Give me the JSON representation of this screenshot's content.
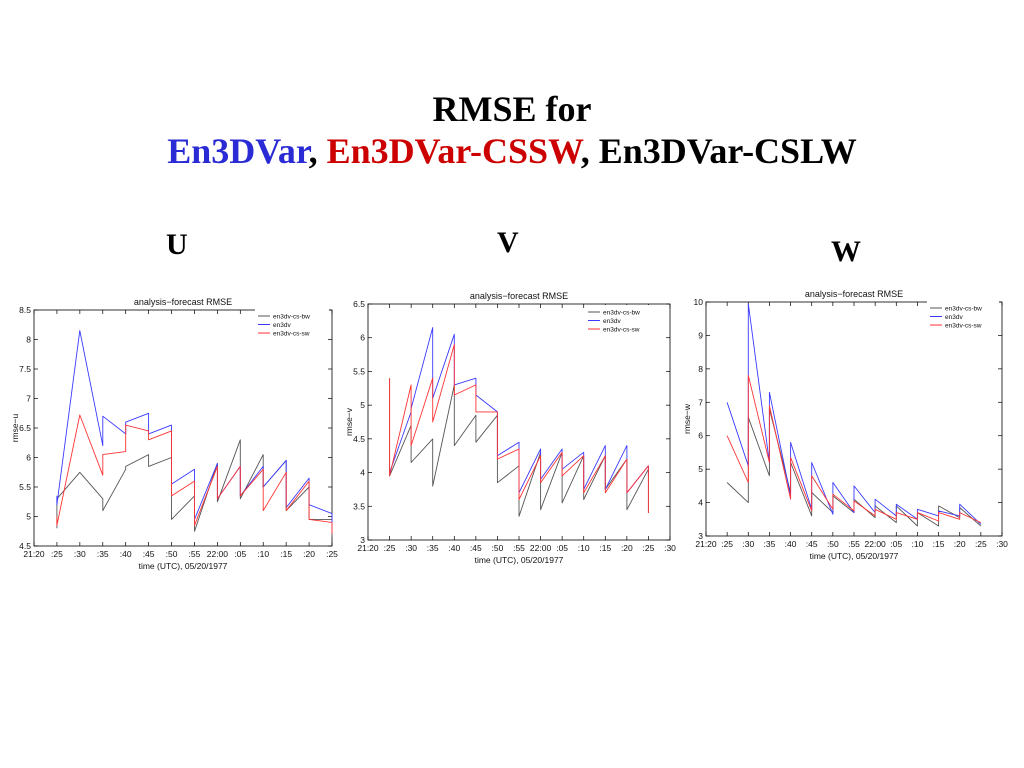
{
  "title": {
    "line1": "RMSE for",
    "part_a": "En3DVar",
    "sep1": ", ",
    "part_b": "En3DVar-CSSW",
    "sep2": ", ",
    "part_c": "En3DVar-CSLW"
  },
  "colors": {
    "en3dv-cs-bw": "#555555",
    "en3dv": "#3a3aff",
    "en3dv-cs-sw": "#ff3333"
  },
  "chart_data": [
    {
      "type": "line",
      "panel_label": "U",
      "title": "analysis−forecast RMSE",
      "xlabel": "time (UTC), 05/20/1977",
      "ylabel": "rmse−u",
      "x_ticks": [
        ":20",
        ":25",
        ":30",
        ":35",
        ":40",
        ":45",
        ":50",
        ":55",
        "22:00",
        ":05",
        ":10",
        ":15",
        ":20",
        ":25"
      ],
      "x_tick_first": "21:20",
      "x_range": [
        0,
        65
      ],
      "y_ticks": [
        "4.5",
        "5",
        "5.5",
        "6",
        "6.5",
        "7",
        "7.5",
        "8",
        "8.5"
      ],
      "ylim": [
        4.5,
        8.5
      ],
      "legend": [
        "en3dv-cs-bw",
        "en3dv",
        "en3dv-cs-sw"
      ],
      "series": [
        {
          "name": "en3dv-cs-bw",
          "points": [
            [
              5,
              4.8
            ],
            [
              5,
              5.3
            ],
            [
              10,
              5.75
            ],
            [
              15,
              5.3
            ],
            [
              15,
              5.1
            ],
            [
              20,
              5.8
            ],
            [
              20,
              5.85
            ],
            [
              25,
              6.05
            ],
            [
              25,
              5.85
            ],
            [
              30,
              6.0
            ],
            [
              30,
              4.95
            ],
            [
              35,
              5.35
            ],
            [
              35,
              4.75
            ],
            [
              40,
              5.9
            ],
            [
              40,
              5.25
            ],
            [
              45,
              6.3
            ],
            [
              45,
              5.3
            ],
            [
              50,
              6.05
            ],
            [
              50,
              5.5
            ],
            [
              55,
              5.95
            ],
            [
              55,
              5.1
            ],
            [
              60,
              5.5
            ],
            [
              60,
              4.95
            ],
            [
              65,
              4.95
            ],
            [
              65,
              4.65
            ]
          ]
        },
        {
          "name": "en3dv",
          "points": [
            [
              5,
              5.35
            ],
            [
              5,
              5.2
            ],
            [
              10,
              8.15
            ],
            [
              15,
              6.2
            ],
            [
              15,
              6.7
            ],
            [
              20,
              6.4
            ],
            [
              20,
              6.6
            ],
            [
              25,
              6.75
            ],
            [
              25,
              6.4
            ],
            [
              30,
              6.55
            ],
            [
              30,
              5.55
            ],
            [
              35,
              5.8
            ],
            [
              35,
              4.95
            ],
            [
              40,
              5.9
            ],
            [
              40,
              5.3
            ],
            [
              45,
              5.85
            ],
            [
              45,
              5.35
            ],
            [
              50,
              5.85
            ],
            [
              50,
              5.5
            ],
            [
              55,
              5.95
            ],
            [
              55,
              5.15
            ],
            [
              60,
              5.65
            ],
            [
              60,
              5.2
            ],
            [
              65,
              5.05
            ],
            [
              65,
              4.75
            ]
          ]
        },
        {
          "name": "en3dv-cs-sw",
          "points": [
            [
              5,
              5.0
            ],
            [
              5,
              4.85
            ],
            [
              10,
              6.72
            ],
            [
              15,
              5.7
            ],
            [
              15,
              6.05
            ],
            [
              20,
              6.1
            ],
            [
              20,
              6.55
            ],
            [
              25,
              6.45
            ],
            [
              25,
              6.3
            ],
            [
              30,
              6.45
            ],
            [
              30,
              5.35
            ],
            [
              35,
              5.6
            ],
            [
              35,
              4.85
            ],
            [
              40,
              5.85
            ],
            [
              40,
              5.3
            ],
            [
              45,
              5.85
            ],
            [
              45,
              5.35
            ],
            [
              50,
              5.8
            ],
            [
              50,
              5.1
            ],
            [
              55,
              5.75
            ],
            [
              55,
              5.1
            ],
            [
              60,
              5.6
            ],
            [
              60,
              4.95
            ],
            [
              65,
              4.9
            ],
            [
              65,
              4.7
            ]
          ]
        }
      ]
    },
    {
      "type": "line",
      "panel_label": "V",
      "title": "analysis−forecast RMSE",
      "xlabel": "time (UTC), 05/20/1977",
      "ylabel": "rmse−v",
      "x_ticks": [
        ":20",
        ":25",
        ":30",
        ":35",
        ":40",
        ":45",
        ":50",
        ":55",
        "22:00",
        ":05",
        ":10",
        ":15",
        ":20",
        ":25",
        ":30"
      ],
      "x_tick_first": "21:20",
      "x_range": [
        0,
        70
      ],
      "y_ticks": [
        "3",
        "3.5",
        "4",
        "4.5",
        "5",
        "5.5",
        "6",
        "6.5"
      ],
      "ylim": [
        3,
        6.5
      ],
      "legend": [
        "en3dv-cs-bw",
        "en3dv",
        "en3dv-cs-sw"
      ],
      "series": [
        {
          "name": "en3dv-cs-bw",
          "points": [
            [
              5,
              5.4
            ],
            [
              5,
              3.95
            ],
            [
              10,
              4.7
            ],
            [
              10,
              4.15
            ],
            [
              15,
              4.5
            ],
            [
              15,
              3.8
            ],
            [
              20,
              5.3
            ],
            [
              20,
              4.4
            ],
            [
              25,
              4.85
            ],
            [
              25,
              4.45
            ],
            [
              30,
              4.85
            ],
            [
              30,
              3.85
            ],
            [
              35,
              4.1
            ],
            [
              35,
              3.35
            ],
            [
              40,
              4.3
            ],
            [
              40,
              3.45
            ],
            [
              45,
              4.3
            ],
            [
              45,
              3.55
            ],
            [
              50,
              4.25
            ],
            [
              50,
              3.6
            ],
            [
              55,
              4.25
            ],
            [
              55,
              3.75
            ],
            [
              60,
              4.2
            ],
            [
              60,
              3.45
            ],
            [
              65,
              4.05
            ],
            [
              65,
              3.4
            ]
          ]
        },
        {
          "name": "en3dv",
          "points": [
            [
              5,
              4.0
            ],
            [
              10,
              4.9
            ],
            [
              10,
              4.95
            ],
            [
              15,
              6.15
            ],
            [
              15,
              5.1
            ],
            [
              20,
              6.05
            ],
            [
              20,
              5.3
            ],
            [
              25,
              5.4
            ],
            [
              25,
              5.15
            ],
            [
              30,
              4.9
            ],
            [
              30,
              4.25
            ],
            [
              35,
              4.45
            ],
            [
              35,
              3.7
            ],
            [
              40,
              4.35
            ],
            [
              40,
              3.9
            ],
            [
              45,
              4.35
            ],
            [
              45,
              4.05
            ],
            [
              50,
              4.3
            ],
            [
              50,
              3.75
            ],
            [
              55,
              4.4
            ],
            [
              55,
              3.75
            ],
            [
              60,
              4.4
            ],
            [
              60,
              3.7
            ],
            [
              65,
              4.1
            ],
            [
              65,
              3.95
            ]
          ]
        },
        {
          "name": "en3dv-cs-sw",
          "points": [
            [
              5,
              5.4
            ],
            [
              5,
              3.95
            ],
            [
              10,
              5.3
            ],
            [
              10,
              4.4
            ],
            [
              15,
              5.4
            ],
            [
              15,
              4.75
            ],
            [
              20,
              5.9
            ],
            [
              20,
              5.15
            ],
            [
              25,
              5.3
            ],
            [
              25,
              4.9
            ],
            [
              30,
              4.9
            ],
            [
              30,
              4.2
            ],
            [
              35,
              4.35
            ],
            [
              35,
              3.6
            ],
            [
              40,
              4.25
            ],
            [
              40,
              3.85
            ],
            [
              45,
              4.3
            ],
            [
              45,
              3.95
            ],
            [
              50,
              4.25
            ],
            [
              50,
              3.7
            ],
            [
              55,
              4.25
            ],
            [
              55,
              3.7
            ],
            [
              60,
              4.2
            ],
            [
              60,
              3.7
            ],
            [
              65,
              4.1
            ],
            [
              65,
              3.4
            ]
          ]
        }
      ]
    },
    {
      "type": "line",
      "panel_label": "W",
      "title": "analysis−forecast RMSE",
      "xlabel": "time (UTC), 05/20/1977",
      "ylabel": "rmse−w",
      "x_ticks": [
        ":20",
        ":25",
        ":30",
        ":35",
        ":40",
        ":45",
        ":50",
        ":55",
        "22:00",
        ":05",
        ":10",
        ":15",
        ":20",
        ":25",
        ":30"
      ],
      "x_tick_first": "21:20",
      "x_range": [
        0,
        70
      ],
      "y_ticks": [
        "3",
        "4",
        "5",
        "6",
        "7",
        "8",
        "9",
        "10"
      ],
      "ylim": [
        3,
        10
      ],
      "legend": [
        "en3dv-cs-bw",
        "en3dv",
        "en3dv-cs-sw"
      ],
      "series": [
        {
          "name": "en3dv-cs-bw",
          "points": [
            [
              5,
              4.6
            ],
            [
              10,
              4.0
            ],
            [
              10,
              6.55
            ],
            [
              15,
              4.8
            ],
            [
              15,
              6.8
            ],
            [
              20,
              4.3
            ],
            [
              20,
              5.2
            ],
            [
              25,
              3.6
            ],
            [
              25,
              4.3
            ],
            [
              30,
              3.7
            ],
            [
              30,
              4.2
            ],
            [
              35,
              3.7
            ],
            [
              35,
              4.1
            ],
            [
              40,
              3.55
            ],
            [
              40,
              3.9
            ],
            [
              45,
              3.4
            ],
            [
              45,
              3.9
            ],
            [
              50,
              3.3
            ],
            [
              50,
              3.7
            ],
            [
              55,
              3.3
            ],
            [
              55,
              3.9
            ],
            [
              60,
              3.55
            ],
            [
              60,
              3.85
            ],
            [
              65,
              3.3
            ]
          ]
        },
        {
          "name": "en3dv",
          "points": [
            [
              5,
              7.0
            ],
            [
              10,
              5.1
            ],
            [
              10,
              9.95
            ],
            [
              15,
              5.2
            ],
            [
              15,
              7.3
            ],
            [
              20,
              4.2
            ],
            [
              20,
              5.8
            ],
            [
              25,
              3.8
            ],
            [
              25,
              5.2
            ],
            [
              30,
              3.65
            ],
            [
              30,
              4.6
            ],
            [
              35,
              3.7
            ],
            [
              35,
              4.5
            ],
            [
              40,
              3.7
            ],
            [
              40,
              4.1
            ],
            [
              45,
              3.6
            ],
            [
              45,
              3.95
            ],
            [
              50,
              3.5
            ],
            [
              50,
              3.8
            ],
            [
              55,
              3.6
            ],
            [
              55,
              3.75
            ],
            [
              60,
              3.6
            ],
            [
              60,
              3.95
            ],
            [
              65,
              3.35
            ]
          ]
        },
        {
          "name": "en3dv-cs-sw",
          "points": [
            [
              5,
              6.0
            ],
            [
              10,
              4.6
            ],
            [
              10,
              7.8
            ],
            [
              15,
              5.2
            ],
            [
              15,
              6.9
            ],
            [
              20,
              4.1
            ],
            [
              20,
              5.35
            ],
            [
              25,
              3.75
            ],
            [
              25,
              4.8
            ],
            [
              30,
              3.8
            ],
            [
              30,
              4.25
            ],
            [
              35,
              3.75
            ],
            [
              35,
              4.05
            ],
            [
              40,
              3.6
            ],
            [
              40,
              3.8
            ],
            [
              45,
              3.5
            ],
            [
              45,
              3.7
            ],
            [
              50,
              3.5
            ],
            [
              50,
              3.7
            ],
            [
              55,
              3.45
            ],
            [
              55,
              3.7
            ],
            [
              60,
              3.5
            ],
            [
              60,
              3.7
            ],
            [
              65,
              3.4
            ]
          ]
        }
      ]
    }
  ]
}
